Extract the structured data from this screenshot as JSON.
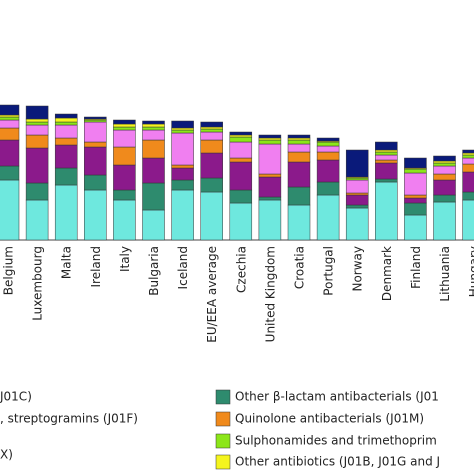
{
  "chart_data": {
    "type": "bar",
    "stacked": true,
    "categories": [
      "Belgium",
      "Luxembourg",
      "Malta",
      "Ireland",
      "Italy",
      "Bulgaria",
      "Iceland",
      "EU/EEA average",
      "Czechia",
      "United Kingdom",
      "Croatia",
      "Portugal",
      "Norway",
      "Denmark",
      "Finland",
      "Lithuania",
      "Hungary"
    ],
    "ylim": [
      0,
      140
    ],
    "series": [
      {
        "name": "J01C)",
        "color": "#6ee8de",
        "values": [
          60,
          40,
          55,
          50,
          40,
          30,
          50,
          48,
          37,
          40,
          35,
          45,
          32,
          58,
          25,
          38,
          40
        ]
      },
      {
        "name": "Other β-lactam antibacterials (J01",
        "color": "#2e8b6e",
        "values": [
          14,
          17,
          17,
          15,
          10,
          27,
          10,
          14,
          13,
          3,
          18,
          13,
          3,
          3,
          12,
          7,
          8
        ]
      },
      {
        "name": ", streptogramins (J01F)",
        "color": "#8b1a8b",
        "values": [
          26,
          35,
          23,
          28,
          25,
          25,
          12,
          25,
          28,
          20,
          25,
          22,
          10,
          16,
          5,
          15,
          20
        ]
      },
      {
        "name": "Quinolone antibacterials (J01M)",
        "color": "#f08a1c",
        "values": [
          12,
          13,
          7,
          5,
          18,
          18,
          3,
          13,
          4,
          3,
          10,
          8,
          2,
          3,
          3,
          6,
          8
        ]
      },
      {
        "name": "X)",
        "color": "#f07ff0",
        "values": [
          8,
          10,
          13,
          20,
          17,
          10,
          32,
          8,
          16,
          30,
          8,
          6,
          13,
          5,
          22,
          8,
          6
        ]
      },
      {
        "name": "Sulphonamides and trimethoprim",
        "color": "#8ce619",
        "values": [
          3,
          3,
          3,
          2,
          3,
          3,
          3,
          3,
          5,
          4,
          4,
          4,
          2,
          3,
          4,
          3,
          3
        ]
      },
      {
        "name": "Other antibiotics (J01B, J01G and J",
        "color": "#f5f51e",
        "values": [
          2,
          3,
          4,
          1,
          3,
          3,
          2,
          2,
          2,
          2,
          2,
          1,
          1,
          2,
          1,
          2,
          2
        ]
      },
      {
        "color": "#0a1a7a",
        "values": [
          10,
          13,
          4,
          2,
          4,
          3,
          7,
          5,
          3,
          3,
          3,
          3,
          27,
          8,
          10,
          5,
          3
        ]
      }
    ]
  }
}
